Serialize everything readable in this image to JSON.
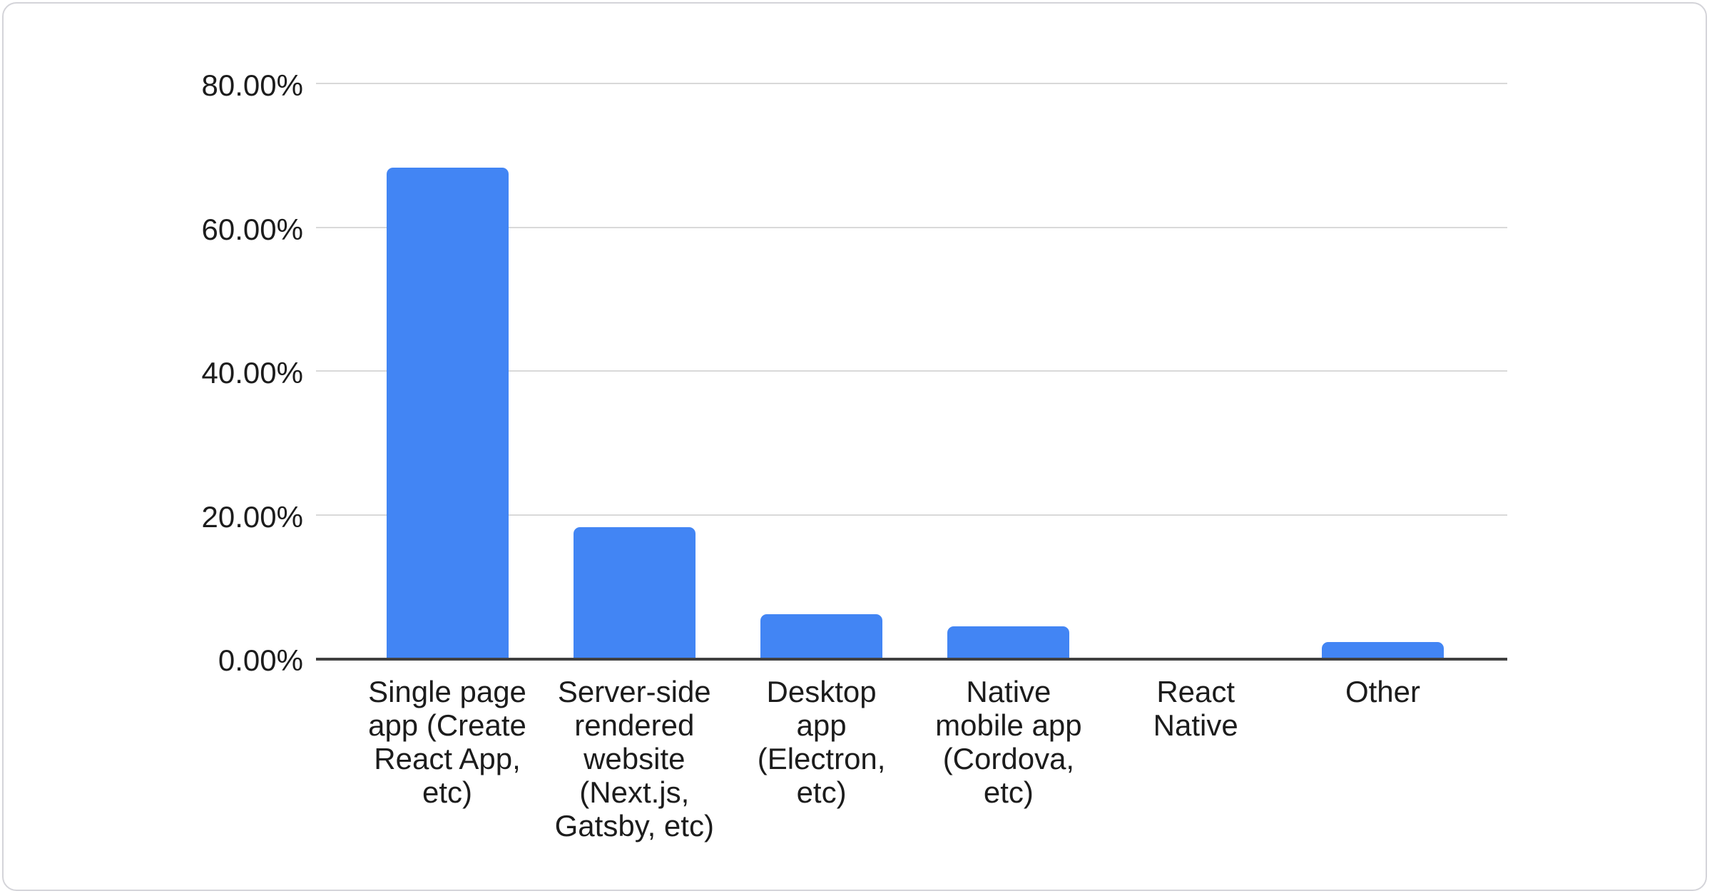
{
  "chart_data": {
    "type": "bar",
    "title": "",
    "xlabel": "",
    "ylabel": "",
    "categories": [
      "Single page\napp (Create\nReact App,\netc)",
      "Server-side\nrendered\nwebsite\n(Next.js,\nGatsby, etc)",
      "Desktop\napp\n(Electron,\netc)",
      "Native\nmobile app\n(Cordova,\netc)",
      "React\nNative",
      "Other"
    ],
    "values": [
      68.3,
      18.3,
      6.2,
      4.5,
      0,
      2.3
    ],
    "value_unit": "percent",
    "ylim": [
      0,
      80
    ],
    "yticks": [
      {
        "value": 0,
        "label": "0.00%"
      },
      {
        "value": 20,
        "label": "20.00%"
      },
      {
        "value": 40,
        "label": "40.00%"
      },
      {
        "value": 60,
        "label": "60.00%"
      },
      {
        "value": 80,
        "label": "80.00%"
      }
    ],
    "grid": "horizontal",
    "legend": "none",
    "colors": {
      "bar": "#4285f4",
      "gridline": "#d9d9d9",
      "axis_line": "#404040",
      "tick_text": "#1c1c1c",
      "card_border": "#d4d4d9",
      "background": "#ffffff"
    }
  }
}
